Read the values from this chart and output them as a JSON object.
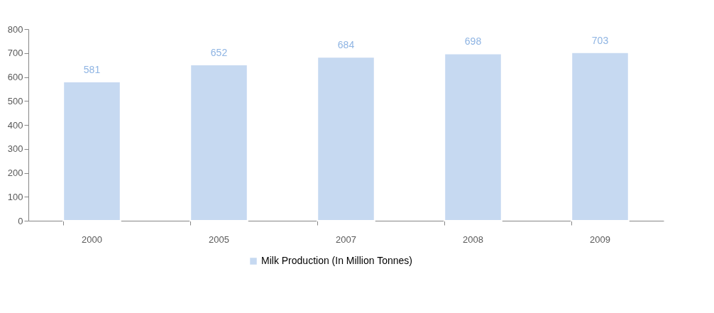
{
  "chart_data": {
    "type": "bar",
    "categories": [
      "2000",
      "2005",
      "2007",
      "2008",
      "2009"
    ],
    "series": [
      {
        "name": "Milk Production (In Million Tonnes)",
        "color": "#c6d9f1",
        "values": [
          581,
          652,
          684,
          698,
          703
        ]
      }
    ],
    "ylim": [
      0,
      800
    ],
    "yticks": [
      0,
      100,
      200,
      300,
      400,
      500,
      600,
      700,
      800
    ],
    "data_labels": true,
    "grid": false,
    "legend": "bottom"
  }
}
